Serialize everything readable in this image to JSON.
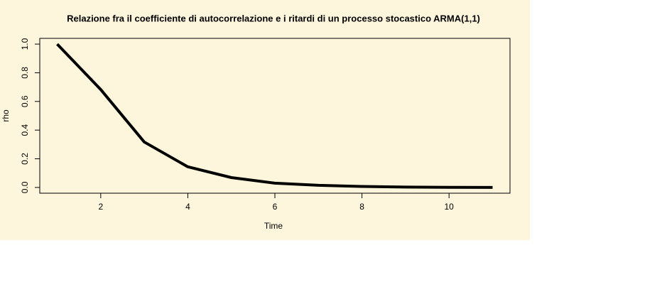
{
  "chart_data": {
    "type": "line",
    "title": "Relazione fra il coefficiente di autocorrelazione e i ritardi di un processo stocastico  ARMA(1,1)",
    "x_label": "Time",
    "y_label": "rho",
    "x": [
      1,
      2,
      3,
      4,
      5,
      6,
      7,
      8,
      9,
      10,
      11
    ],
    "series": [
      {
        "color": "#000000",
        "values": [
          1.0,
          0.683,
          0.317,
          0.144,
          0.069,
          0.03,
          0.015,
          0.007,
          0.003,
          0.001,
          0.0005
        ]
      }
    ],
    "xlim": [
      0.6,
      11.4
    ],
    "ylim": [
      -0.04,
      1.04
    ],
    "xticks": [
      2,
      4,
      6,
      8,
      10
    ],
    "yticks": [
      {
        "value": 0,
        "label": "0.0"
      },
      0.2,
      0.4,
      0.6,
      0.8,
      {
        "value": 1,
        "label": "1.0"
      }
    ],
    "grid": false
  }
}
